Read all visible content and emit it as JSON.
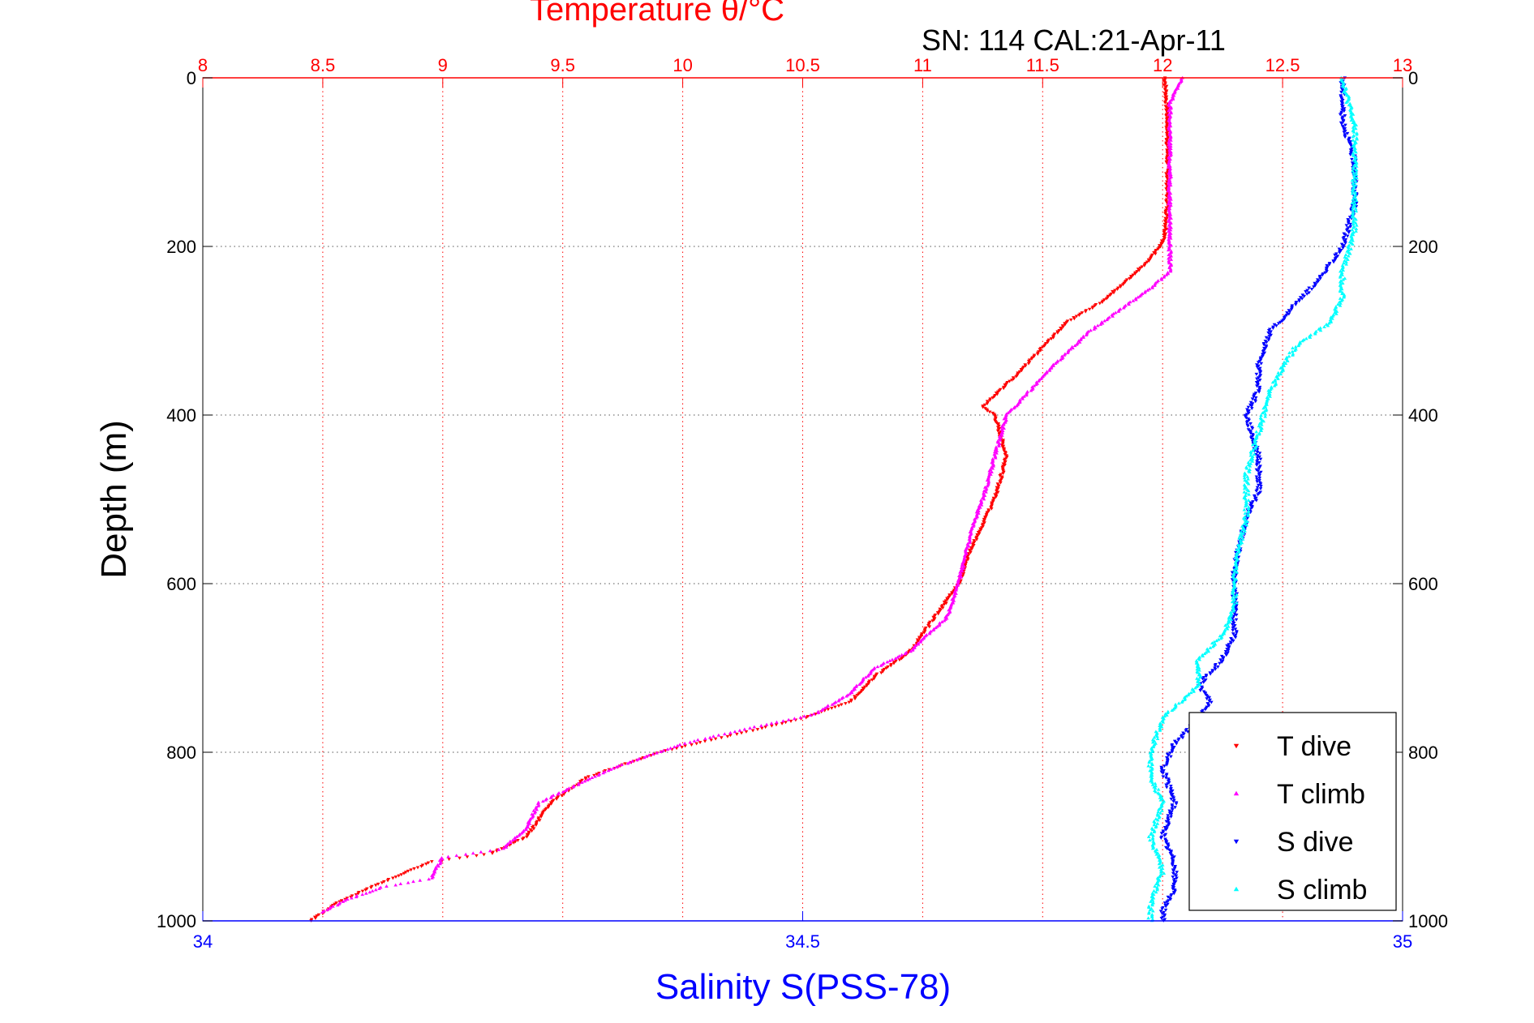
{
  "chart_data": {
    "type": "scatter",
    "title": "Temperature θ/°C",
    "subtitle": "SN: 114  CAL:21-Apr-11",
    "xlabel_bottom": "Salinity S(PSS-78)",
    "ylabel": "Depth (m)",
    "x_top_axis": {
      "range": [
        8,
        13
      ],
      "ticks": [
        "8",
        "8.5",
        "9",
        "9.5",
        "10",
        "10.5",
        "11",
        "11.5",
        "12",
        "12.5",
        "13"
      ],
      "color": "#ff0000"
    },
    "x_bottom_axis": {
      "range": [
        34,
        35
      ],
      "ticks": [
        "34",
        "34.5",
        "35"
      ],
      "color": "#0000ff"
    },
    "y_axis": {
      "range": [
        0,
        1000
      ],
      "reversed": true,
      "ticks": [
        "0",
        "200",
        "400",
        "600",
        "800",
        "1000"
      ]
    },
    "grid": true,
    "legend_position": "bottom-right",
    "series": [
      {
        "name": "T dive",
        "axis": "temperature",
        "color": "#ff0000",
        "marker": "triangle-down",
        "points": [
          [
            12.01,
            0
          ],
          [
            12.02,
            50
          ],
          [
            12.02,
            100
          ],
          [
            12.02,
            150
          ],
          [
            12.01,
            190
          ],
          [
            11.95,
            215
          ],
          [
            11.85,
            240
          ],
          [
            11.75,
            265
          ],
          [
            11.6,
            290
          ],
          [
            11.5,
            320
          ],
          [
            11.4,
            350
          ],
          [
            11.25,
            390
          ],
          [
            11.3,
            400
          ],
          [
            11.35,
            450
          ],
          [
            11.3,
            500
          ],
          [
            11.2,
            560
          ],
          [
            11.15,
            600
          ],
          [
            11.05,
            640
          ],
          [
            10.95,
            680
          ],
          [
            10.8,
            710
          ],
          [
            10.7,
            740
          ],
          [
            10.5,
            760
          ],
          [
            10.2,
            780
          ],
          [
            9.9,
            800
          ],
          [
            9.6,
            830
          ],
          [
            9.45,
            860
          ],
          [
            9.35,
            900
          ],
          [
            9.2,
            920
          ],
          [
            8.95,
            930
          ],
          [
            8.7,
            960
          ],
          [
            8.55,
            980
          ],
          [
            8.45,
            1000
          ]
        ]
      },
      {
        "name": "T climb",
        "axis": "temperature",
        "color": "#ff00ff",
        "marker": "triangle-up",
        "points": [
          [
            12.08,
            0
          ],
          [
            12.03,
            30
          ],
          [
            12.03,
            100
          ],
          [
            12.03,
            170
          ],
          [
            12.03,
            230
          ],
          [
            11.95,
            250
          ],
          [
            11.8,
            280
          ],
          [
            11.7,
            300
          ],
          [
            11.55,
            340
          ],
          [
            11.45,
            370
          ],
          [
            11.35,
            400
          ],
          [
            11.3,
            450
          ],
          [
            11.25,
            500
          ],
          [
            11.2,
            540
          ],
          [
            11.15,
            600
          ],
          [
            11.1,
            640
          ],
          [
            10.95,
            680
          ],
          [
            10.8,
            700
          ],
          [
            10.7,
            730
          ],
          [
            10.55,
            755
          ],
          [
            10.3,
            770
          ],
          [
            10.0,
            790
          ],
          [
            9.7,
            820
          ],
          [
            9.55,
            840
          ],
          [
            9.4,
            860
          ],
          [
            9.35,
            890
          ],
          [
            9.25,
            915
          ],
          [
            9.0,
            925
          ],
          [
            8.95,
            950
          ],
          [
            8.75,
            960
          ],
          [
            8.6,
            975
          ],
          [
            8.5,
            990
          ]
        ]
      },
      {
        "name": "S dive",
        "axis": "salinity",
        "color": "#0000ff",
        "marker": "triangle-down",
        "points": [
          [
            34.95,
            0
          ],
          [
            34.95,
            50
          ],
          [
            34.96,
            100
          ],
          [
            34.96,
            150
          ],
          [
            34.95,
            200
          ],
          [
            34.93,
            240
          ],
          [
            34.91,
            270
          ],
          [
            34.89,
            300
          ],
          [
            34.88,
            340
          ],
          [
            34.88,
            370
          ],
          [
            34.87,
            400
          ],
          [
            34.88,
            450
          ],
          [
            34.88,
            490
          ],
          [
            34.87,
            520
          ],
          [
            34.86,
            580
          ],
          [
            34.86,
            620
          ],
          [
            34.86,
            660
          ],
          [
            34.85,
            690
          ],
          [
            34.83,
            720
          ],
          [
            34.84,
            740
          ],
          [
            34.83,
            760
          ],
          [
            34.81,
            790
          ],
          [
            34.8,
            820
          ],
          [
            34.81,
            860
          ],
          [
            34.8,
            900
          ],
          [
            34.81,
            930
          ],
          [
            34.81,
            960
          ],
          [
            34.8,
            990
          ],
          [
            34.8,
            1000
          ]
        ]
      },
      {
        "name": "S climb",
        "axis": "salinity",
        "color": "#00ffff",
        "marker": "triangle-up",
        "points": [
          [
            34.95,
            0
          ],
          [
            34.96,
            60
          ],
          [
            34.96,
            120
          ],
          [
            34.96,
            180
          ],
          [
            34.95,
            230
          ],
          [
            34.95,
            260
          ],
          [
            34.94,
            290
          ],
          [
            34.91,
            320
          ],
          [
            34.89,
            370
          ],
          [
            34.88,
            420
          ],
          [
            34.87,
            470
          ],
          [
            34.87,
            520
          ],
          [
            34.86,
            580
          ],
          [
            34.86,
            630
          ],
          [
            34.85,
            660
          ],
          [
            34.83,
            690
          ],
          [
            34.83,
            720
          ],
          [
            34.8,
            760
          ],
          [
            34.79,
            800
          ],
          [
            34.79,
            830
          ],
          [
            34.8,
            860
          ],
          [
            34.79,
            900
          ],
          [
            34.8,
            940
          ],
          [
            34.79,
            980
          ],
          [
            34.79,
            1000
          ]
        ]
      }
    ]
  }
}
